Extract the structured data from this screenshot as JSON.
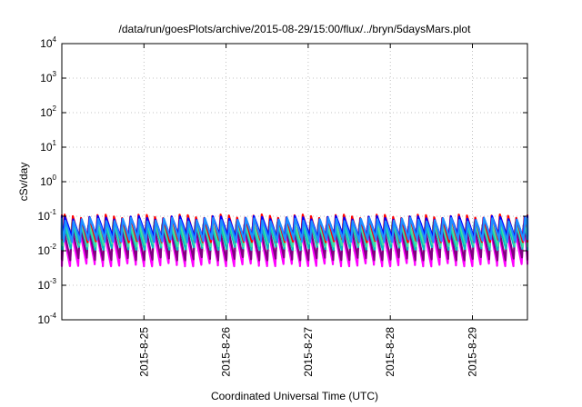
{
  "chart_data": {
    "type": "line",
    "title": "/data/run/goesPlots/archive/2015-08-29/15:00/flux/../bryn/5daysMars.plot",
    "xlabel": "Coordinated Universal Time (UTC)",
    "ylabel": "cSv/day",
    "yscale": "log",
    "ylim": [
      0.0001,
      10000
    ],
    "xlim_days": [
      24.0,
      29.67
    ],
    "grid": true,
    "y_ticks": [
      {
        "base": "10",
        "exp": "-4",
        "value": 0.0001
      },
      {
        "base": "10",
        "exp": "-3",
        "value": 0.001
      },
      {
        "base": "10",
        "exp": "-2",
        "value": 0.01
      },
      {
        "base": "10",
        "exp": "-1",
        "value": 0.1
      },
      {
        "base": "10",
        "exp": "0",
        "value": 1
      },
      {
        "base": "10",
        "exp": "1",
        "value": 10
      },
      {
        "base": "10",
        "exp": "2",
        "value": 100
      },
      {
        "base": "10",
        "exp": "3",
        "value": 1000
      },
      {
        "base": "10",
        "exp": "4",
        "value": 10000
      }
    ],
    "x_ticks": [
      {
        "label": "2015-8-25",
        "day": 25
      },
      {
        "label": "2015-8-26",
        "day": 26
      },
      {
        "label": "2015-8-27",
        "day": 27
      },
      {
        "label": "2015-8-28",
        "day": 28
      },
      {
        "label": "2015-8-29",
        "day": 29
      }
    ],
    "pulses_per_day": 10,
    "series": [
      {
        "color": "#ff00ff",
        "peak": 0.04,
        "trough": 0.004
      },
      {
        "color": "#800080",
        "peak": 0.05,
        "trough": 0.006
      },
      {
        "color": "#00c0c0",
        "peak": 0.06,
        "trough": 0.012
      },
      {
        "color": "#40e0a0",
        "peak": 0.07,
        "trough": 0.015
      },
      {
        "color": "#ff0000",
        "peak": 0.1,
        "trough": 0.02
      },
      {
        "color": "#0000ff",
        "peak": 0.09,
        "trough": 0.025
      },
      {
        "color": "#1e90ff",
        "peak": 0.08,
        "trough": 0.02
      }
    ]
  }
}
